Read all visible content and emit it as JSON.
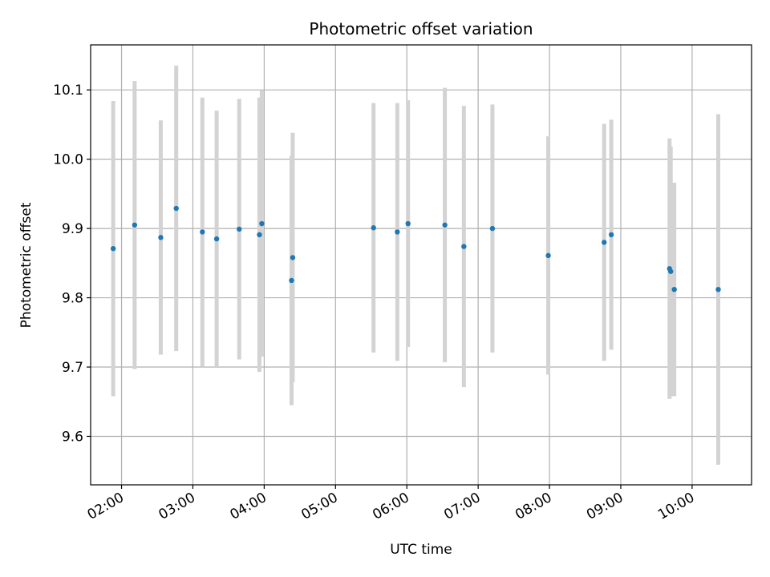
{
  "chart_data": {
    "type": "scatter",
    "title": "Photometric offset variation",
    "xlabel": "UTC time",
    "ylabel": "Photometric offset",
    "x_ticks": [
      "02:00",
      "03:00",
      "04:00",
      "05:00",
      "06:00",
      "07:00",
      "08:00",
      "09:00",
      "10:00"
    ],
    "y_ticks": [
      9.6,
      9.7,
      9.8,
      9.9,
      10.0,
      10.1
    ],
    "xlim": [
      "01:34",
      "10:50"
    ],
    "ylim": [
      9.53,
      10.165
    ],
    "grid": true,
    "colors": {
      "point": "#1f77b4",
      "errorbar": "#d3d3d3",
      "grid": "#b0b0b0"
    },
    "points": [
      {
        "x": "01:53",
        "y": 9.871,
        "yerr": 0.213
      },
      {
        "x": "02:11",
        "y": 9.905,
        "yerr": 0.208
      },
      {
        "x": "02:33",
        "y": 9.887,
        "yerr": 0.169
      },
      {
        "x": "02:46",
        "y": 9.929,
        "yerr": 0.206
      },
      {
        "x": "03:08",
        "y": 9.895,
        "yerr": 0.194
      },
      {
        "x": "03:20",
        "y": 9.885,
        "yerr": 0.185
      },
      {
        "x": "03:39",
        "y": 9.899,
        "yerr": 0.188
      },
      {
        "x": "03:56",
        "y": 9.891,
        "yerr": 0.198
      },
      {
        "x": "03:58",
        "y": 9.907,
        "yerr": 0.192
      },
      {
        "x": "04:23",
        "y": 9.825,
        "yerr": 0.18
      },
      {
        "x": "04:24",
        "y": 9.858,
        "yerr": 0.18
      },
      {
        "x": "05:32",
        "y": 9.901,
        "yerr": 0.18
      },
      {
        "x": "05:52",
        "y": 9.895,
        "yerr": 0.186
      },
      {
        "x": "06:01",
        "y": 9.907,
        "yerr": 0.178
      },
      {
        "x": "06:32",
        "y": 9.905,
        "yerr": 0.198
      },
      {
        "x": "06:48",
        "y": 9.874,
        "yerr": 0.203
      },
      {
        "x": "07:12",
        "y": 9.9,
        "yerr": 0.179
      },
      {
        "x": "07:59",
        "y": 9.861,
        "yerr": 0.172
      },
      {
        "x": "08:46",
        "y": 9.88,
        "yerr": 0.171
      },
      {
        "x": "08:52",
        "y": 9.891,
        "yerr": 0.166
      },
      {
        "x": "09:41",
        "y": 9.842,
        "yerr": 0.188
      },
      {
        "x": "09:42",
        "y": 9.838,
        "yerr": 0.18
      },
      {
        "x": "09:45",
        "y": 9.812,
        "yerr": 0.154
      },
      {
        "x": "10:22",
        "y": 9.812,
        "yerr": 0.253
      }
    ]
  }
}
